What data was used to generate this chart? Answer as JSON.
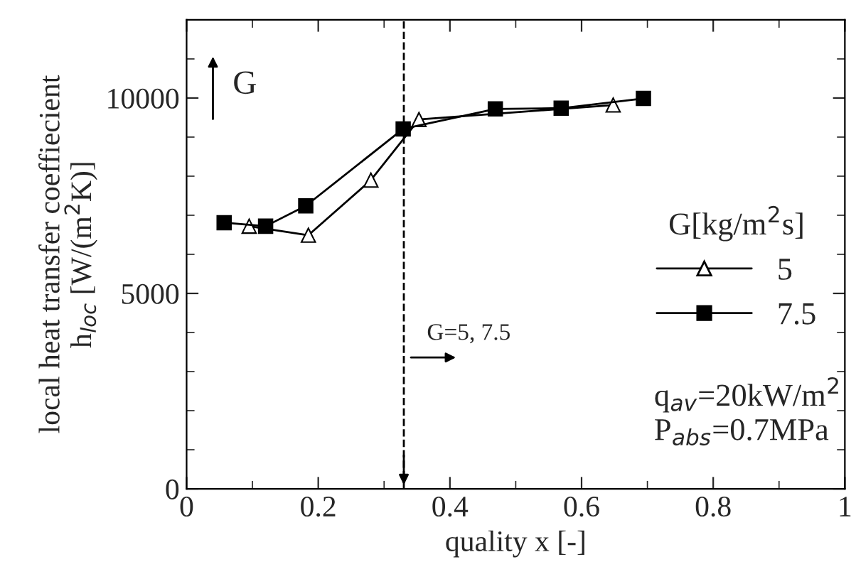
{
  "chart_data": {
    "type": "line",
    "xlabel": "quality x [-]",
    "ylabel": "local heat transfer coeffiecient\nh$_{loc}$ [W/(m$^{2}$K)]",
    "legend_title": "G[kg/m$^{2}$s]",
    "series": [
      {
        "name": "5",
        "color": "#000000",
        "marker": "triangle",
        "x": [
          0.095,
          0.185,
          0.28,
          0.353,
          0.648
        ],
        "values": [
          6720,
          6490,
          7900,
          9450,
          9820
        ]
      },
      {
        "name": "7.5",
        "color": "#000000",
        "marker": "square",
        "x": [
          0.057,
          0.12,
          0.181,
          0.329,
          0.469,
          0.569,
          0.694
        ],
        "values": [
          6810,
          6720,
          7240,
          9210,
          9720,
          9740,
          9990
        ]
      }
    ],
    "xlim": [
      0,
      1
    ],
    "xticks": [
      0,
      0.2,
      0.4,
      0.6,
      0.8,
      1
    ],
    "ylim": [
      0,
      12000
    ],
    "yticks": [
      0,
      5000,
      10000
    ],
    "ref_lines": [
      {
        "axis": "x",
        "value": 0.33,
        "line_style": "dashed",
        "color": "#000000"
      }
    ],
    "annotations": [
      "G",
      "G=5, 7.5",
      "q$_{av}$=20kW/m$^{2}$",
      "P$_{abs}$=0.7MPa"
    ],
    "legend": "right",
    "grid": false,
    "line_style": "solid"
  }
}
